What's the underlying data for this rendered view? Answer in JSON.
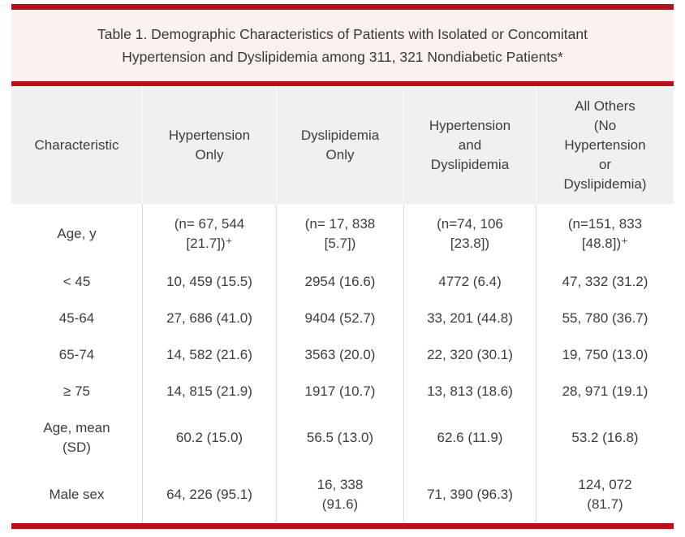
{
  "caption": "Table 1. Demographic Characteristics of Patients with Isolated or Concomitant\nHypertension and Dyslipidemia among 311, 321 Nondiabetic Patients*",
  "colors": {
    "rule_red": "#c00c14",
    "caption_background": "#fbf1ee",
    "header_background": "#f0f0f0",
    "body_background": "#ffffff",
    "text": "#3d3d3d",
    "column_divider": "#d9d9d9"
  },
  "table": {
    "columns": [
      "Characteristic",
      "Hypertension\nOnly",
      "Dyslipidemia\nOnly",
      "Hypertension\nand\nDyslipidemia",
      "All Others\n(No\nHypertension\nor\nDyslipidemia)"
    ],
    "rows": [
      {
        "label": "Age, y",
        "values": [
          "(n= 67, 544\n[21.7])⁺",
          "(n= 17, 838\n[5.7])",
          "(n=74, 106\n[23.8])",
          "(n=151, 833\n[48.8])⁺"
        ]
      },
      {
        "label": "< 45",
        "values": [
          "10, 459 (15.5)",
          "2954 (16.6)",
          "4772 (6.4)",
          "47, 332 (31.2)"
        ]
      },
      {
        "label": "45-64",
        "values": [
          "27, 686 (41.0)",
          "9404 (52.7)",
          "33, 201 (44.8)",
          "55, 780 (36.7)"
        ]
      },
      {
        "label": "65-74",
        "values": [
          "14, 582 (21.6)",
          "3563 (20.0)",
          "22, 320 (30.1)",
          "19, 750 (13.0)"
        ]
      },
      {
        "label": "≥ 75",
        "values": [
          "14, 815 (21.9)",
          "1917 (10.7)",
          "13, 813 (18.6)",
          "28, 971 (19.1)"
        ]
      },
      {
        "label": "Age, mean\n(SD)",
        "values": [
          "60.2 (15.0)",
          "56.5 (13.0)",
          "62.6 (11.9)",
          "53.2 (16.8)"
        ]
      },
      {
        "label": "Male sex",
        "values": [
          "64, 226 (95.1)",
          "16, 338\n(91.6)",
          "71, 390 (96.3)",
          "124, 072\n(81.7)"
        ]
      }
    ]
  }
}
